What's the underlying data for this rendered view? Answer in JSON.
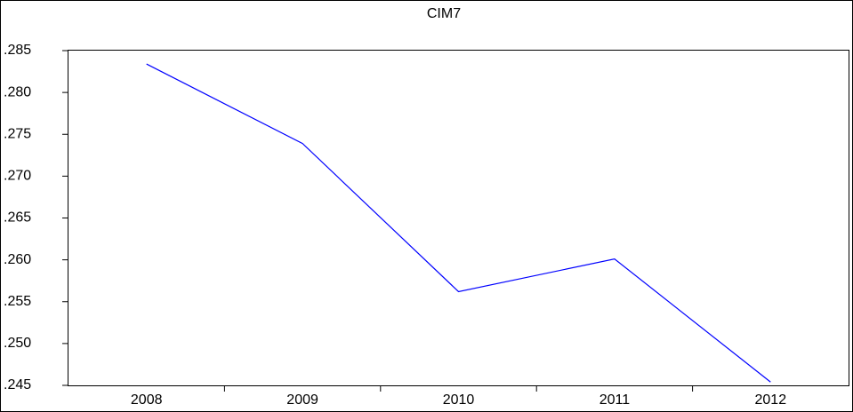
{
  "chart_data": {
    "type": "line",
    "title": "CIM7",
    "categories": [
      "2008",
      "2009",
      "2010",
      "2011",
      "2012"
    ],
    "series": [
      {
        "name": "CIM7",
        "color": "#0000ff",
        "values": [
          0.2834,
          0.2739,
          0.2562,
          0.2601,
          0.2454
        ]
      }
    ],
    "ylim": [
      0.245,
      0.285
    ],
    "yticks": [
      {
        "value": 0.245,
        "label": ".245"
      },
      {
        "value": 0.25,
        "label": ".250"
      },
      {
        "value": 0.255,
        "label": ".255"
      },
      {
        "value": 0.26,
        "label": ".260"
      },
      {
        "value": 0.265,
        "label": ".265"
      },
      {
        "value": 0.27,
        "label": ".270"
      },
      {
        "value": 0.275,
        "label": ".275"
      },
      {
        "value": 0.28,
        "label": ".280"
      },
      {
        "value": 0.285,
        "label": ".285"
      }
    ],
    "grid": false
  }
}
